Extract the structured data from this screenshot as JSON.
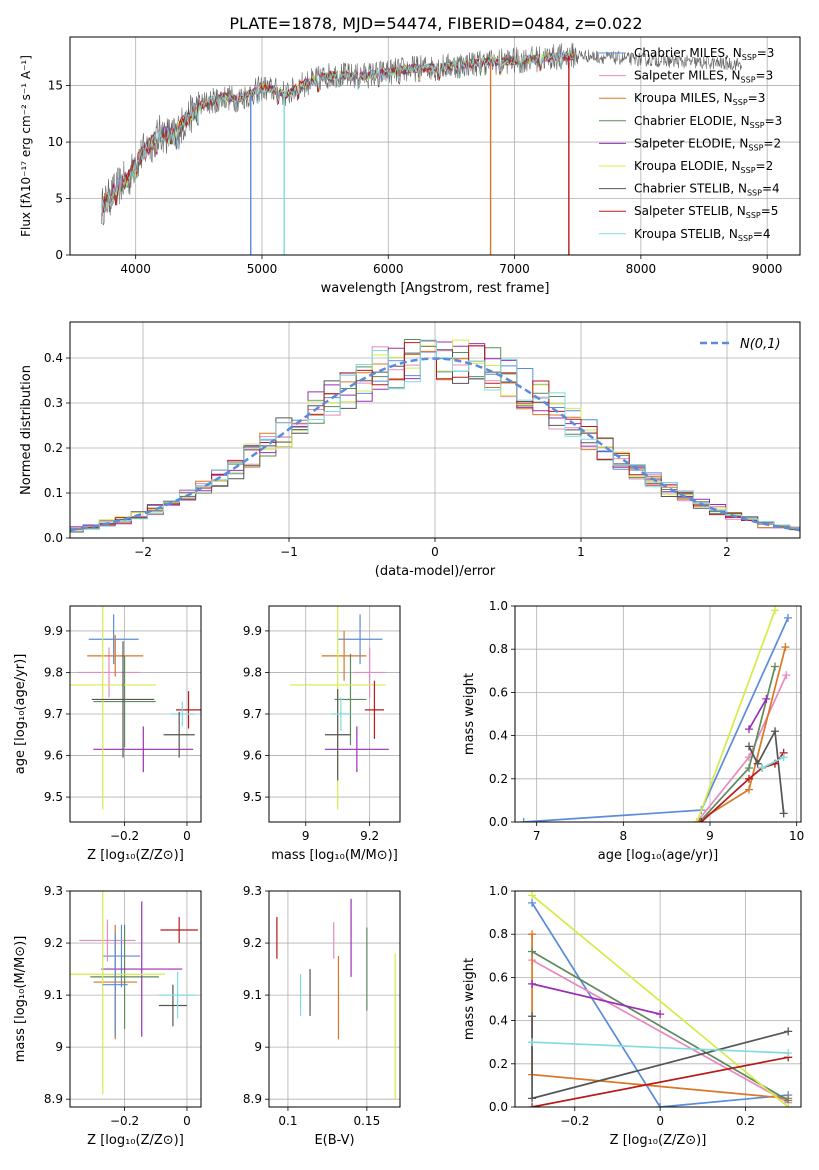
{
  "title": "PLATE=1878, MJD=54474, FIBERID=0484, z=0.022",
  "colors": {
    "Chabrier MILES": "#5b8bdb",
    "Salpeter MILES": "#e889c0",
    "Kroupa MILES": "#d97725",
    "Chabrier ELODIE": "#5e8a5e",
    "Salpeter ELODIE": "#9a2fb5",
    "Kroupa ELODIE": "#d4ec4a",
    "Chabrier STELIB": "#555555",
    "Salpeter STELIB": "#b81a1a",
    "Kroupa STELIB": "#7fdbe0"
  },
  "chart_data": [
    {
      "id": "spectrum",
      "type": "line",
      "xlabel": "wavelength [Angstrom, rest frame]",
      "ylabel": "Flux [fλ10⁻¹⁷ erg cm⁻² s⁻¹ A⁻¹]",
      "xlim": [
        3480,
        9260
      ],
      "ylim": [
        0,
        19.3
      ],
      "xticks": [
        4000,
        5000,
        6000,
        7000,
        8000,
        9000
      ],
      "yticks": [
        0,
        5,
        10,
        15
      ],
      "legend": [
        {
          "name": "Chabrier MILES",
          "label": "Chabrier MILES, N",
          "sub": "SSP",
          "tail": "=3"
        },
        {
          "name": "Salpeter MILES",
          "label": "Salpeter MILES, N",
          "sub": "SSP",
          "tail": "=3"
        },
        {
          "name": "Kroupa MILES",
          "label": "Kroupa MILES, N",
          "sub": "SSP",
          "tail": "=3"
        },
        {
          "name": "Chabrier ELODIE",
          "label": "Chabrier ELODIE, N",
          "sub": "SSP",
          "tail": "=3"
        },
        {
          "name": "Salpeter ELODIE",
          "label": "Salpeter ELODIE, N",
          "sub": "SSP",
          "tail": "=2"
        },
        {
          "name": "Kroupa ELODIE",
          "label": "Kroupa ELODIE, N",
          "sub": "SSP",
          "tail": "=2"
        },
        {
          "name": "Chabrier STELIB",
          "label": "Chabrier STELIB, N",
          "sub": "SSP",
          "tail": "=4"
        },
        {
          "name": "Salpeter STELIB",
          "label": "Salpeter STELIB, N",
          "sub": "SSP",
          "tail": "=5"
        },
        {
          "name": "Kroupa STELIB",
          "label": "Kroupa STELIB, N",
          "sub": "SSP",
          "tail": "=4"
        }
      ],
      "continuum": [
        [
          3730,
          4.2
        ],
        [
          3800,
          5.2
        ],
        [
          3900,
          6.5
        ],
        [
          3950,
          6.8
        ],
        [
          4000,
          8.2
        ],
        [
          4100,
          9.6
        ],
        [
          4200,
          10.8
        ],
        [
          4300,
          10.5
        ],
        [
          4400,
          12.0
        ],
        [
          4500,
          13.2
        ],
        [
          4600,
          13.6
        ],
        [
          4700,
          14.0
        ],
        [
          4800,
          13.8
        ],
        [
          4900,
          14.2
        ],
        [
          5000,
          14.8
        ],
        [
          5100,
          14.6
        ],
        [
          5200,
          14.2
        ],
        [
          5300,
          15.0
        ],
        [
          5400,
          15.4
        ],
        [
          5500,
          15.8
        ],
        [
          5600,
          16.0
        ],
        [
          5700,
          15.8
        ],
        [
          5800,
          15.9
        ],
        [
          5900,
          16.0
        ],
        [
          6000,
          16.2
        ],
        [
          6200,
          16.5
        ],
        [
          6400,
          16.6
        ],
        [
          6600,
          16.9
        ],
        [
          6800,
          17.1
        ],
        [
          7000,
          17.2
        ],
        [
          7200,
          17.4
        ],
        [
          7400,
          17.6
        ],
        [
          7500,
          17.7
        ],
        [
          7700,
          17.5
        ],
        [
          8000,
          17.3
        ],
        [
          8500,
          17.0
        ],
        [
          8800,
          16.9
        ]
      ],
      "absorption_lines": [
        [
          4911,
          "Chabrier MILES"
        ],
        [
          5176,
          "Kroupa STELIB"
        ],
        [
          6810,
          "Kroupa MILES"
        ],
        [
          7430,
          "Salpeter STELIB"
        ]
      ],
      "model_end": 7470,
      "data_end": 8800
    },
    {
      "id": "residuals",
      "type": "histogram",
      "xlabel": "(data-model)/error",
      "ylabel": "Normed distribution",
      "xlim": [
        -2.5,
        2.5
      ],
      "ylim": [
        0,
        0.48
      ],
      "xticks": [
        -2,
        -1,
        0,
        1,
        2
      ],
      "yticks": [
        0.0,
        0.1,
        0.2,
        0.3,
        0.4
      ],
      "legend": "N(0,1)",
      "reference_curve": "normal pdf, mean 0, sigma 1"
    },
    {
      "id": "age-vs-Z",
      "type": "errorbar",
      "xlabel": "Z [log₁₀(Z/Z⊙)]",
      "ylabel": "age  [log₁₀(age/yr)]",
      "xlim": [
        -0.375,
        0.045
      ],
      "ylim": [
        9.44,
        9.96
      ],
      "xticks": [
        -0.2,
        0.0
      ],
      "yticks": [
        9.5,
        9.6,
        9.7,
        9.8,
        9.9
      ],
      "points": [
        {
          "name": "Chabrier MILES",
          "x": -0.235,
          "xerr": 0.08,
          "y": 9.88,
          "yerr": 0.06
        },
        {
          "name": "Salpeter MILES",
          "x": -0.25,
          "xerr": 0.1,
          "y": 9.8,
          "yerr": 0.06
        },
        {
          "name": "Kroupa MILES",
          "x": -0.23,
          "xerr": 0.09,
          "y": 9.84,
          "yerr": 0.05
        },
        {
          "name": "Chabrier ELODIE",
          "x": -0.2,
          "xerr": 0.1,
          "y": 9.73,
          "yerr": 0.11
        },
        {
          "name": "Salpeter ELODIE",
          "x": -0.14,
          "xerr": 0.16,
          "y": 9.615,
          "yerr": 0.055
        },
        {
          "name": "Kroupa ELODIE",
          "x": -0.27,
          "xerr": 0.17,
          "y": 9.77,
          "yerr": 0.3
        },
        {
          "name": "Chabrier STELIB",
          "x": -0.205,
          "xerr": 0.1,
          "y": 9.735,
          "yerr": 0.14
        },
        {
          "name": "Salpeter STELIB",
          "x": 0.005,
          "xerr": 0.04,
          "y": 9.71,
          "yerr": 0.045
        },
        {
          "name": "Kroupa STELIB",
          "x": -0.015,
          "xerr": 0.04,
          "y": 9.7,
          "yerr": 0.03
        },
        {
          "name": "Chabrier STELIB",
          "x": -0.025,
          "xerr": 0.05,
          "y": 9.65,
          "yerr": 0.055
        }
      ]
    },
    {
      "id": "age-vs-mass",
      "type": "errorbar",
      "xlabel": "mass [log₁₀(M/M⊙)]",
      "ylabel": "",
      "xlim": [
        8.885,
        9.295
      ],
      "ylim": [
        9.44,
        9.96
      ],
      "xticks": [
        9.0,
        9.2
      ],
      "yticks": [
        9.5,
        9.6,
        9.7,
        9.8,
        9.9
      ],
      "points": [
        {
          "name": "Chabrier MILES",
          "x": 9.17,
          "xerr": 0.07,
          "y": 9.88,
          "yerr": 0.06
        },
        {
          "name": "Salpeter MILES",
          "x": 9.2,
          "xerr": 0.05,
          "y": 9.8,
          "yerr": 0.06
        },
        {
          "name": "Kroupa MILES",
          "x": 9.12,
          "xerr": 0.07,
          "y": 9.84,
          "yerr": 0.06
        },
        {
          "name": "Chabrier ELODIE",
          "x": 9.14,
          "xerr": 0.05,
          "y": 9.735,
          "yerr": 0.11
        },
        {
          "name": "Salpeter ELODIE",
          "x": 9.16,
          "xerr": 0.1,
          "y": 9.615,
          "yerr": 0.055
        },
        {
          "name": "Kroupa ELODIE",
          "x": 9.1,
          "xerr": 0.15,
          "y": 9.77,
          "yerr": 0.3
        },
        {
          "name": "Chabrier STELIB",
          "x": 9.1,
          "xerr": 0.04,
          "y": 9.65,
          "yerr": 0.11
        },
        {
          "name": "Salpeter STELIB",
          "x": 9.215,
          "xerr": 0.03,
          "y": 9.71,
          "yerr": 0.07
        },
        {
          "name": "Kroupa STELIB",
          "x": 9.11,
          "xerr": 0.03,
          "y": 9.7,
          "yerr": 0.04
        }
      ]
    },
    {
      "id": "weight-vs-age",
      "type": "line",
      "xlabel": "age  [log₁₀(age/yr)]",
      "ylabel": "mass weight",
      "xlim": [
        6.75,
        10.05
      ],
      "ylim": [
        0,
        1
      ],
      "xticks": [
        7,
        8,
        9,
        10
      ],
      "yticks": [
        0.0,
        0.2,
        0.4,
        0.6,
        0.8,
        1.0
      ],
      "series": [
        {
          "name": "Chabrier MILES",
          "x": [
            6.85,
            8.9,
            9.9
          ],
          "y": [
            0.0,
            0.055,
            0.945
          ]
        },
        {
          "name": "Salpeter MILES",
          "x": [
            8.85,
            9.45,
            9.88
          ],
          "y": [
            0.0,
            0.3,
            0.68
          ]
        },
        {
          "name": "Kroupa MILES",
          "x": [
            8.85,
            9.45,
            9.87
          ],
          "y": [
            0.0,
            0.15,
            0.81
          ]
        },
        {
          "name": "Chabrier ELODIE",
          "x": [
            8.88,
            9.45,
            9.75
          ],
          "y": [
            0.0,
            0.25,
            0.72
          ]
        },
        {
          "name": "Salpeter ELODIE",
          "x": [
            9.45,
            9.65
          ],
          "y": [
            0.43,
            0.57
          ]
        },
        {
          "name": "Kroupa ELODIE",
          "x": [
            8.85,
            9.75
          ],
          "y": [
            0.0,
            0.98
          ]
        },
        {
          "name": "Chabrier STELIB",
          "x": [
            9.45,
            9.55,
            9.75,
            9.85
          ],
          "y": [
            0.35,
            0.27,
            0.42,
            0.04
          ]
        },
        {
          "name": "Salpeter STELIB",
          "x": [
            8.9,
            9.45,
            9.6,
            9.75,
            9.85
          ],
          "y": [
            0.0,
            0.2,
            0.25,
            0.27,
            0.32
          ]
        },
        {
          "name": "Kroupa STELIB",
          "x": [
            9.6,
            9.85
          ],
          "y": [
            0.25,
            0.3
          ]
        }
      ]
    },
    {
      "id": "mass-vs-Z",
      "type": "errorbar",
      "xlabel": "Z [log₁₀(Z/Z⊙)]",
      "ylabel": "mass [log₁₀(M/M⊙)]",
      "xlim": [
        -0.375,
        0.045
      ],
      "ylim": [
        8.885,
        9.3
      ],
      "xticks": [
        -0.2,
        0.0
      ],
      "yticks": [
        8.9,
        9.0,
        9.1,
        9.2,
        9.3
      ],
      "points": [
        {
          "name": "Chabrier MILES",
          "x": -0.21,
          "xerr": 0.06,
          "y": 9.175,
          "yerr": 0.06
        },
        {
          "name": "Salpeter MILES",
          "x": -0.255,
          "xerr": 0.09,
          "y": 9.205,
          "yerr": 0.04
        },
        {
          "name": "Kroupa MILES",
          "x": -0.23,
          "xerr": 0.07,
          "y": 9.125,
          "yerr": 0.11
        },
        {
          "name": "Chabrier ELODIE",
          "x": -0.2,
          "xerr": 0.11,
          "y": 9.135,
          "yerr": 0.1
        },
        {
          "name": "Salpeter ELODIE",
          "x": -0.145,
          "xerr": 0.13,
          "y": 9.15,
          "yerr": 0.13
        },
        {
          "name": "Kroupa ELODIE",
          "x": -0.27,
          "xerr": 0.2,
          "y": 9.14,
          "yerr": 0.23
        },
        {
          "name": "Chabrier STELIB",
          "x": -0.045,
          "xerr": 0.045,
          "y": 9.08,
          "yerr": 0.04
        },
        {
          "name": "Salpeter STELIB",
          "x": -0.025,
          "xerr": 0.06,
          "y": 9.225,
          "yerr": 0.025
        },
        {
          "name": "Kroupa STELIB",
          "x": -0.03,
          "xerr": 0.06,
          "y": 9.1,
          "yerr": 0.045
        },
        {
          "name": "Chabrier MILES",
          "x": -0.23,
          "xerr": 0.04,
          "y": 9.12,
          "yerr": 0.1
        }
      ]
    },
    {
      "id": "mass-vs-ebv",
      "type": "errorbar",
      "xlabel": "E(B-V)",
      "ylabel": "",
      "xlim": [
        0.088,
        0.171
      ],
      "ylim": [
        8.885,
        9.3
      ],
      "xticks": [
        0.1,
        0.15
      ],
      "yticks": [
        8.9,
        9.0,
        9.1,
        9.2,
        9.3
      ],
      "points": [
        {
          "name": "Salpeter STELIB",
          "x": 0.093,
          "y": 9.21,
          "yerr": 0.04
        },
        {
          "name": "Kroupa STELIB",
          "x": 0.108,
          "y": 9.1,
          "yerr": 0.04
        },
        {
          "name": "Chabrier STELIB",
          "x": 0.114,
          "y": 9.105,
          "yerr": 0.045
        },
        {
          "name": "Salpeter MILES",
          "x": 0.129,
          "y": 9.205,
          "yerr": 0.035
        },
        {
          "name": "Kroupa MILES",
          "x": 0.132,
          "y": 9.095,
          "yerr": 0.08
        },
        {
          "name": "Salpeter ELODIE",
          "x": 0.14,
          "y": 9.21,
          "yerr": 0.075
        },
        {
          "name": "Chabrier ELODIE",
          "x": 0.15,
          "y": 9.15,
          "yerr": 0.08
        },
        {
          "name": "Kroupa ELODIE",
          "x": 0.168,
          "y": 9.04,
          "yerr": 0.14
        }
      ]
    },
    {
      "id": "weight-vs-Z",
      "type": "line",
      "xlabel": "Z [log₁₀(Z/Z⊙)]",
      "ylabel": "mass weight",
      "xlim": [
        -0.34,
        0.33
      ],
      "ylim": [
        0,
        1
      ],
      "xticks": [
        -0.2,
        0.0,
        0.2
      ],
      "yticks": [
        0.0,
        0.2,
        0.4,
        0.6,
        0.8,
        1.0
      ],
      "series": [
        {
          "name": "Chabrier MILES",
          "x": [
            -0.3,
            0.0,
            0.3
          ],
          "y": [
            0.945,
            0.0,
            0.055
          ]
        },
        {
          "name": "Salpeter MILES",
          "x": [
            -0.3,
            0.3
          ],
          "y": [
            0.68,
            0.02
          ]
        },
        {
          "name": "Kroupa MILES",
          "x": [
            -0.3,
            -0.3,
            0.3
          ],
          "y": [
            0.8,
            0.15,
            0.04
          ]
        },
        {
          "name": "Chabrier ELODIE",
          "x": [
            -0.3,
            0.3
          ],
          "y": [
            0.72,
            0.03
          ]
        },
        {
          "name": "Salpeter ELODIE",
          "x": [
            -0.3,
            0.0
          ],
          "y": [
            0.57,
            0.43
          ]
        },
        {
          "name": "Kroupa ELODIE",
          "x": [
            -0.3,
            0.3
          ],
          "y": [
            0.98,
            0.0
          ]
        },
        {
          "name": "Chabrier STELIB",
          "x": [
            -0.3,
            -0.3,
            0.3
          ],
          "y": [
            0.42,
            0.04,
            0.35
          ]
        },
        {
          "name": "Salpeter STELIB",
          "x": [
            -0.3,
            0.3
          ],
          "y": [
            0.0,
            0.23
          ]
        },
        {
          "name": "Kroupa STELIB",
          "x": [
            -0.3,
            0.3
          ],
          "y": [
            0.3,
            0.25
          ]
        }
      ]
    }
  ]
}
